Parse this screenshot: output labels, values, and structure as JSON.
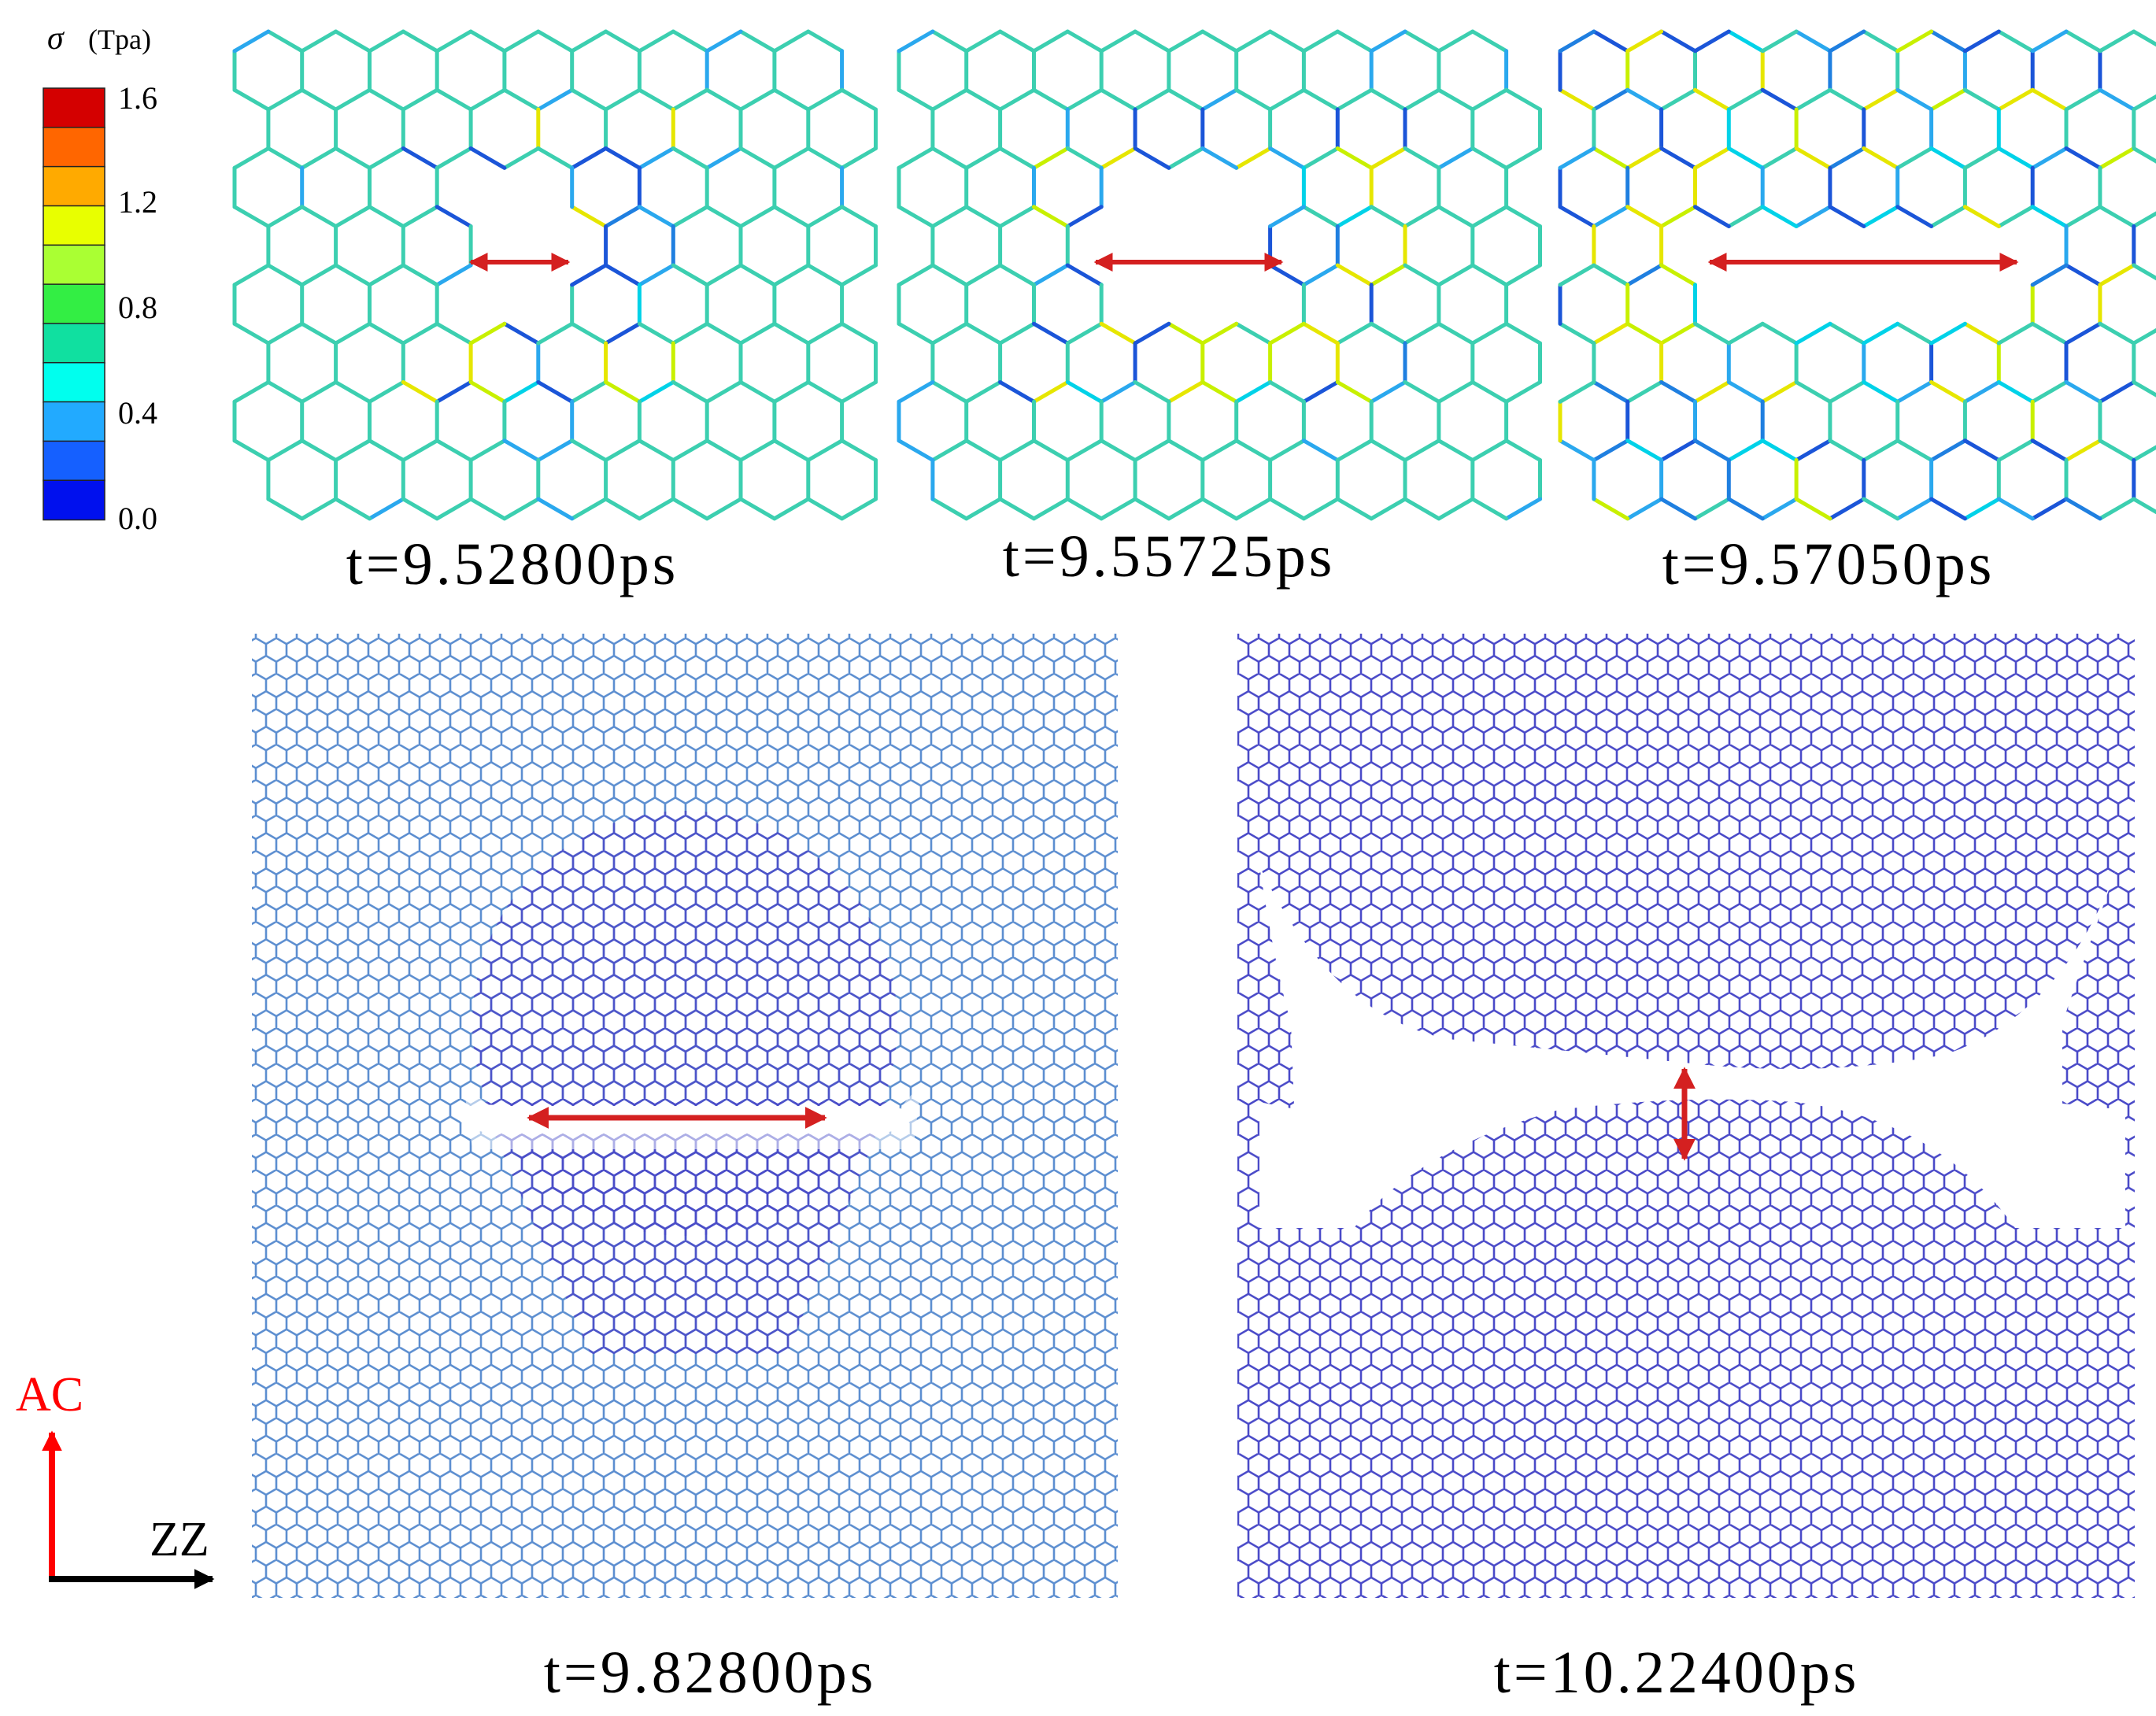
{
  "colorbar": {
    "symbol": "σ",
    "unit": "(Tpa)",
    "ticks": [
      "1.6",
      "1.2",
      "0.8",
      "0.4",
      "0.0"
    ],
    "range": [
      0.0,
      1.6
    ],
    "levels": [
      "#d40000",
      "#ff6600",
      "#ffaa00",
      "#e8ff00",
      "#aaff33",
      "#33ee44",
      "#10e0a0",
      "#00ffee",
      "#22aaff",
      "#1560ff",
      "#0010ee"
    ]
  },
  "panels": [
    {
      "label": "t=9.52800ps",
      "crack_orientation": "horizontal",
      "stress_scheme": "mid"
    },
    {
      "label": "t=9.55725ps",
      "crack_orientation": "horizontal",
      "stress_scheme": "mid"
    },
    {
      "label": "t=9.57050ps",
      "crack_orientation": "horizontal",
      "stress_scheme": "mid"
    },
    {
      "label": "t=9.82800ps",
      "crack_orientation": "horizontal",
      "stress_scheme": "low"
    },
    {
      "label": "t=10.22400ps",
      "crack_orientation": "vertical",
      "stress_scheme": "low"
    }
  ],
  "axes": {
    "vertical_label": "AC",
    "horizontal_label": "ZZ",
    "vertical_color": "#ff0000",
    "horizontal_color": "#000000"
  },
  "colors": {
    "arrow": "#d42020",
    "lattice_mid": "#3ccfb0",
    "lattice_low": "#4a4ac8"
  }
}
